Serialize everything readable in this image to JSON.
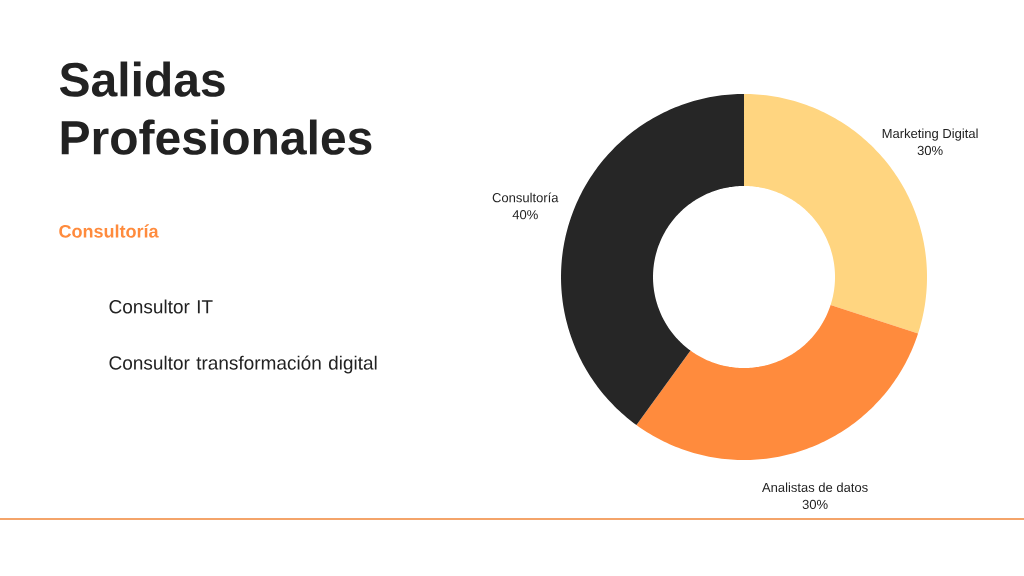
{
  "chart_data": {
    "type": "donut",
    "title": "Salidas Profesionales",
    "subtitle": "Consultoría",
    "annotations": [
      "Consultor IT",
      "Consultor transformación digital"
    ],
    "categories": [
      "Marketing Digital",
      "Analistas de datos",
      "Consultoría"
    ],
    "values": [
      30,
      30,
      40
    ],
    "value_labels": [
      "30%",
      "30%",
      "40%"
    ],
    "colors": [
      "#ffd580",
      "#ff8b3d",
      "#262626"
    ]
  }
}
